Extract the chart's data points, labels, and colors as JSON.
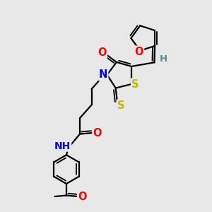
{
  "bg_color": "#e8e8e8",
  "bond_color": "#000000",
  "bond_width": 1.6,
  "dbo": 0.055,
  "atom_colors": {
    "O": "#ff0000",
    "N": "#0000ff",
    "S": "#bbbb00",
    "H": "#4a9090",
    "C": "#000000"
  },
  "fs": 10.5
}
